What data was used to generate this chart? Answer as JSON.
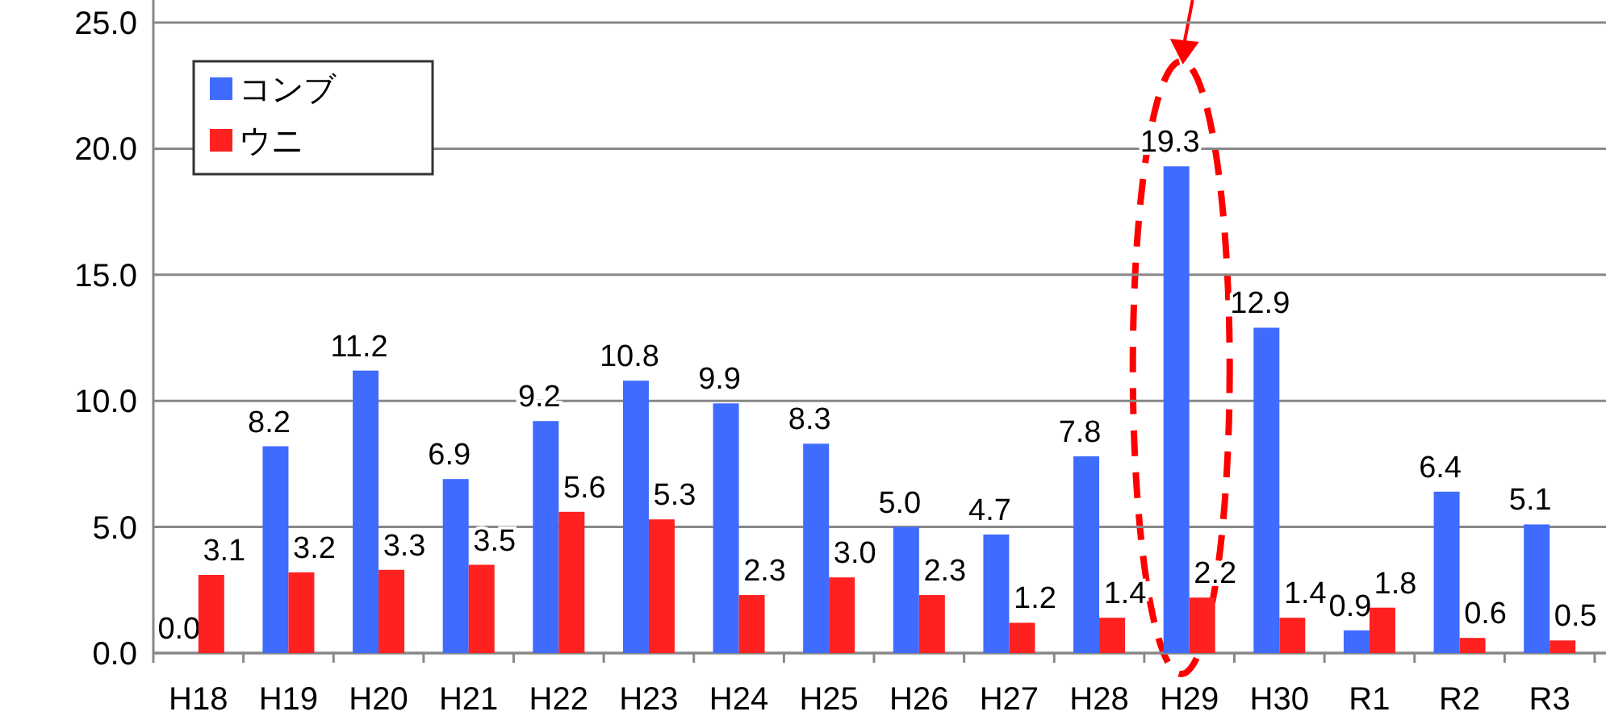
{
  "chart_data": {
    "type": "bar",
    "categories": [
      "H18",
      "H19",
      "H20",
      "H21",
      "H22",
      "H23",
      "H24",
      "H25",
      "H26",
      "H27",
      "H28",
      "H29",
      "H30",
      "R1",
      "R2",
      "R3"
    ],
    "series": [
      {
        "name": "コンブ",
        "color": "#3f6bff",
        "values": [
          0.0,
          8.2,
          11.2,
          6.9,
          9.2,
          10.8,
          9.9,
          8.3,
          5.0,
          4.7,
          7.8,
          19.3,
          12.9,
          0.9,
          6.4,
          5.1
        ],
        "value_labels": [
          "0.0",
          "8.2",
          "11.2",
          "6.9",
          "9.2",
          "10.8",
          "9.9",
          "8.3",
          "5.0",
          "4.7",
          "7.8",
          "19.3",
          "12.9",
          "0.9",
          "6.4",
          "5.1"
        ]
      },
      {
        "name": "ウニ",
        "color": "#ff2020",
        "values": [
          3.1,
          3.2,
          3.3,
          3.5,
          5.6,
          5.3,
          2.3,
          3.0,
          2.3,
          1.2,
          1.4,
          2.2,
          1.4,
          1.8,
          0.6,
          0.5
        ],
        "value_labels": [
          "3.1",
          "3.2",
          "3.3",
          "3.5",
          "5.6",
          "5.3",
          "2.3",
          "3.0",
          "2.3",
          "1.2",
          "1.4",
          "2.2",
          "1.4",
          "1.8",
          "0.6",
          "0.5"
        ]
      }
    ],
    "ylim": [
      0,
      25
    ],
    "yticks": [
      {
        "value": 0,
        "label": "0.0"
      },
      {
        "value": 5,
        "label": "5.0"
      },
      {
        "value": 10,
        "label": "10.0"
      },
      {
        "value": 15,
        "label": "15.0"
      },
      {
        "value": 20,
        "label": "20.0"
      },
      {
        "value": 25,
        "label": "25.0"
      }
    ],
    "grid": "y",
    "legend": "top left"
  }
}
